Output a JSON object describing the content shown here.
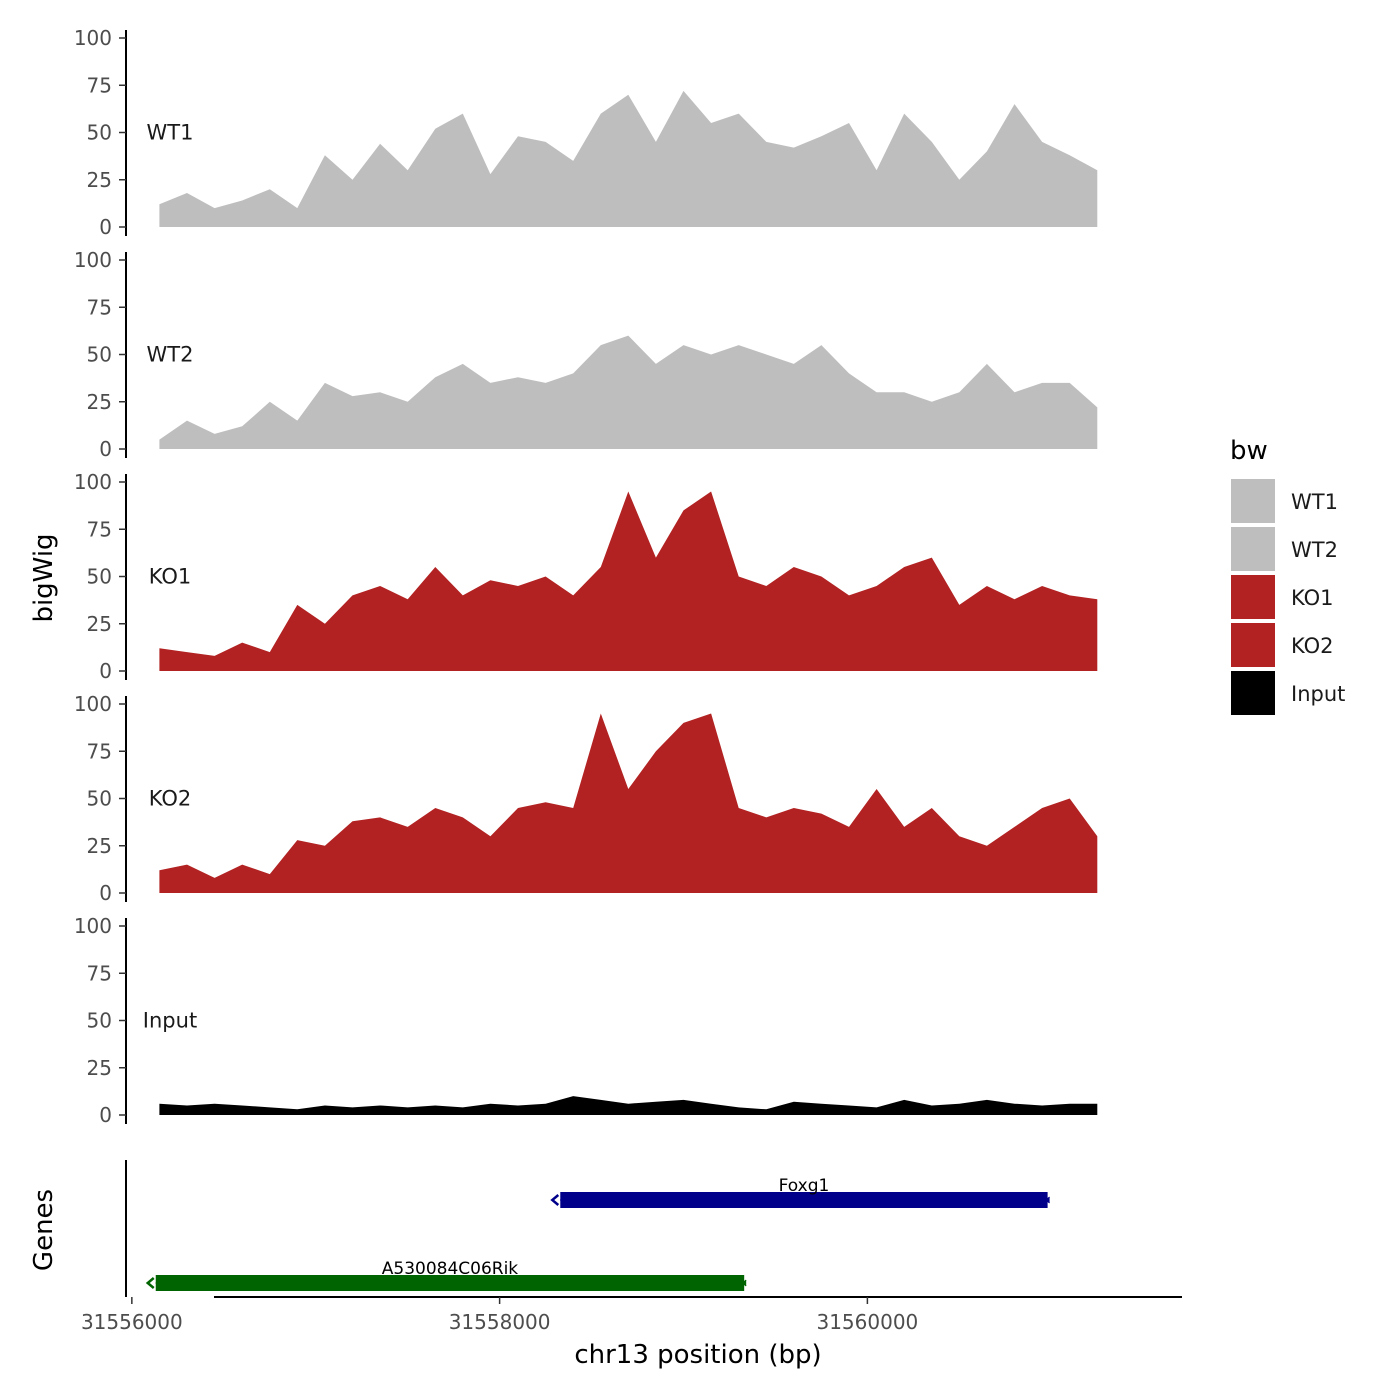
{
  "chart_data": {
    "type": "area",
    "subtype": "genome-browser-tracks",
    "ylabel": "bigWig",
    "xlabel": "chr13 position (bp)",
    "xlim": [
      31555990,
      31561700
    ],
    "ylim": [
      0,
      100
    ],
    "y_ticks": [
      "0",
      "25",
      "50",
      "75",
      "100"
    ],
    "x_ticks": [
      {
        "value": 31556000,
        "label": "31556000"
      },
      {
        "value": 31558000,
        "label": "31558000"
      },
      {
        "value": 31560000,
        "label": "31560000"
      }
    ],
    "grid": false,
    "legend": {
      "title": "bw",
      "position": "right",
      "entries": [
        {
          "label": "WT1",
          "color": "#bebebe"
        },
        {
          "label": "WT2",
          "color": "#bebebe"
        },
        {
          "label": "KO1",
          "color": "#b22222"
        },
        {
          "label": "KO2",
          "color": "#b22222"
        },
        {
          "label": "Input",
          "color": "#000000"
        }
      ]
    },
    "x": [
      31556150,
      31556300,
      31556450,
      31556600,
      31556750,
      31556900,
      31557050,
      31557200,
      31557350,
      31557500,
      31557650,
      31557800,
      31557950,
      31558100,
      31558250,
      31558400,
      31558550,
      31558700,
      31558850,
      31559000,
      31559150,
      31559300,
      31559450,
      31559600,
      31559750,
      31559900,
      31560050,
      31560200,
      31560350,
      31560500,
      31560650,
      31560800,
      31560950,
      31561100,
      31561250
    ],
    "series": [
      {
        "name": "WT1",
        "color": "#bebebe",
        "values": [
          12,
          18,
          10,
          14,
          20,
          10,
          38,
          25,
          44,
          30,
          52,
          60,
          28,
          48,
          45,
          35,
          60,
          70,
          45,
          72,
          55,
          60,
          45,
          42,
          48,
          55,
          30,
          60,
          45,
          25,
          40,
          65,
          45,
          38,
          30
        ]
      },
      {
        "name": "WT2",
        "color": "#bebebe",
        "values": [
          5,
          15,
          8,
          12,
          25,
          15,
          35,
          28,
          30,
          25,
          38,
          45,
          35,
          38,
          35,
          40,
          55,
          60,
          45,
          55,
          50,
          55,
          50,
          45,
          55,
          40,
          30,
          30,
          25,
          30,
          45,
          30,
          35,
          35,
          22
        ]
      },
      {
        "name": "KO1",
        "color": "#b22222",
        "values": [
          12,
          10,
          8,
          15,
          10,
          35,
          25,
          40,
          45,
          38,
          55,
          40,
          48,
          45,
          50,
          40,
          55,
          95,
          60,
          85,
          95,
          50,
          45,
          55,
          50,
          40,
          45,
          55,
          60,
          35,
          45,
          38,
          45,
          40,
          38
        ]
      },
      {
        "name": "KO2",
        "color": "#b22222",
        "values": [
          12,
          15,
          8,
          15,
          10,
          28,
          25,
          38,
          40,
          35,
          45,
          40,
          30,
          45,
          48,
          45,
          95,
          55,
          75,
          90,
          95,
          45,
          40,
          45,
          42,
          35,
          55,
          35,
          45,
          30,
          25,
          35,
          45,
          50,
          30
        ]
      },
      {
        "name": "Input",
        "color": "#000000",
        "values": [
          6,
          5,
          6,
          5,
          4,
          3,
          5,
          4,
          5,
          4,
          5,
          4,
          6,
          5,
          6,
          10,
          8,
          6,
          7,
          8,
          6,
          4,
          3,
          7,
          6,
          5,
          4,
          8,
          5,
          6,
          8,
          6,
          5,
          6,
          6
        ]
      }
    ],
    "genes": {
      "axis_title": "Genes",
      "items": [
        {
          "name": "Foxg1",
          "start": 31558330,
          "end": 31560980,
          "strand": "-",
          "color": "#00008b",
          "row": 0
        },
        {
          "name": "A530084C06Rik",
          "start": 31556130,
          "end": 31559330,
          "strand": "-",
          "color": "#006400",
          "row": 1
        }
      ]
    }
  }
}
